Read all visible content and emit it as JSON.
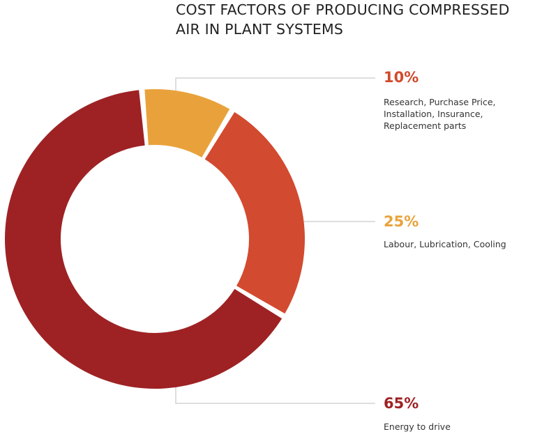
{
  "chart_data": {
    "type": "pie",
    "title": "COST FACTORS OF PRODUCING COMPRESSED AIR IN PLANT SYSTEMS",
    "slices": [
      {
        "value": 10,
        "label": "10%",
        "description": [
          "Research, Purchase Price,",
          "Installation, Insurance,",
          "Replacement parts"
        ],
        "color": "#E9A23B",
        "label_color": "#D14A2B"
      },
      {
        "value": 25,
        "label": "25%",
        "description": [
          "Labour, Lubrication, Cooling"
        ],
        "color": "#D24A2F",
        "label_color": "#E9A23B"
      },
      {
        "value": 65,
        "label": "65%",
        "description": [
          "Energy to drive"
        ],
        "color": "#9E2224",
        "label_color": "#9E2224"
      }
    ]
  },
  "title_lines": [
    "COST FACTORS OF PRODUCING COMPRESSED",
    "AIR IN PLANT SYSTEMS"
  ],
  "colors": {
    "leader_line": "#BDBDBD",
    "title": "#222222",
    "description": "#333333"
  }
}
